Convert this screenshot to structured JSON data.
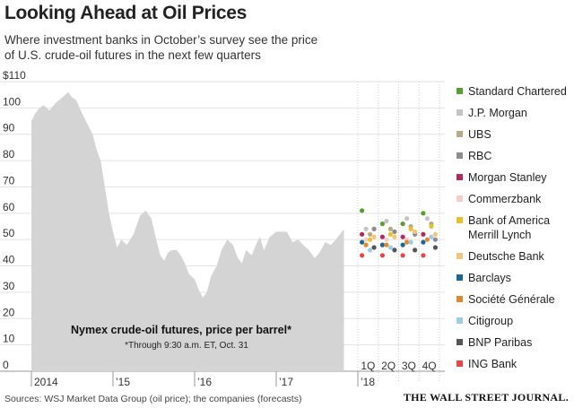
{
  "header": {
    "title": "Looking Ahead at Oil Prices",
    "subtitle": "Where investment banks in October’s survey see the price of U.S. crude-oil futures in the next few quarters"
  },
  "footer": {
    "sources": "Sources: WSJ Market Data Group (oil price); the companies (forecasts)",
    "publisher": "THE WALL STREET JOURNAL."
  },
  "chart_data": {
    "type": "area",
    "title": "Looking Ahead at Oil Prices",
    "ylim": [
      0,
      110
    ],
    "yticks": [
      0,
      10,
      20,
      30,
      40,
      50,
      60,
      70,
      80,
      90,
      100,
      110
    ],
    "ytick_labels": [
      "0",
      "10",
      "20",
      "30",
      "40",
      "50",
      "60",
      "70",
      "80",
      "90",
      "100",
      "$110"
    ],
    "grid": true,
    "year_labels": [
      {
        "label": "2014",
        "t": 2014.0
      },
      {
        "label": "’15",
        "t": 2015.0
      },
      {
        "label": "’16",
        "t": 2016.0
      },
      {
        "label": "’17",
        "t": 2017.0
      },
      {
        "label": "’18",
        "t": 2018.0
      }
    ],
    "quarter_labels": [
      "1Q",
      "2Q",
      "3Q",
      "4Q"
    ],
    "annotation": {
      "label": "Nymex crude-oil futures, price per barrel*",
      "footnote": "*Through 9:30 a.m. ET, Oct. 31"
    },
    "price_series": {
      "name": "Nymex crude-oil futures, price per barrel",
      "points": [
        [
          2014.0,
          95
        ],
        [
          2014.05,
          98
        ],
        [
          2014.1,
          100
        ],
        [
          2014.15,
          101
        ],
        [
          2014.22,
          99
        ],
        [
          2014.3,
          102
        ],
        [
          2014.38,
          104
        ],
        [
          2014.45,
          106
        ],
        [
          2014.5,
          104
        ],
        [
          2014.55,
          103
        ],
        [
          2014.62,
          98
        ],
        [
          2014.7,
          93
        ],
        [
          2014.75,
          90
        ],
        [
          2014.8,
          84
        ],
        [
          2014.85,
          80
        ],
        [
          2014.9,
          70
        ],
        [
          2014.95,
          60
        ],
        [
          2015.0,
          53
        ],
        [
          2015.05,
          47
        ],
        [
          2015.1,
          50
        ],
        [
          2015.17,
          48
        ],
        [
          2015.25,
          52
        ],
        [
          2015.33,
          59
        ],
        [
          2015.4,
          61
        ],
        [
          2015.47,
          58
        ],
        [
          2015.53,
          50
        ],
        [
          2015.58,
          44
        ],
        [
          2015.63,
          42
        ],
        [
          2015.67,
          45
        ],
        [
          2015.72,
          46
        ],
        [
          2015.78,
          46
        ],
        [
          2015.83,
          44
        ],
        [
          2015.88,
          41
        ],
        [
          2015.93,
          37
        ],
        [
          2016.0,
          35
        ],
        [
          2016.05,
          31
        ],
        [
          2016.1,
          28
        ],
        [
          2016.15,
          30
        ],
        [
          2016.2,
          36
        ],
        [
          2016.27,
          40
        ],
        [
          2016.33,
          46
        ],
        [
          2016.4,
          50
        ],
        [
          2016.47,
          48
        ],
        [
          2016.53,
          43
        ],
        [
          2016.58,
          41
        ],
        [
          2016.63,
          46
        ],
        [
          2016.7,
          44
        ],
        [
          2016.75,
          48
        ],
        [
          2016.8,
          51
        ],
        [
          2016.85,
          46
        ],
        [
          2016.92,
          51
        ],
        [
          2017.0,
          53
        ],
        [
          2017.07,
          53
        ],
        [
          2017.13,
          53
        ],
        [
          2017.2,
          49
        ],
        [
          2017.27,
          50
        ],
        [
          2017.33,
          48
        ],
        [
          2017.4,
          46
        ],
        [
          2017.47,
          43
        ],
        [
          2017.53,
          45
        ],
        [
          2017.6,
          49
        ],
        [
          2017.67,
          48
        ],
        [
          2017.73,
          50
        ],
        [
          2017.78,
          52
        ],
        [
          2017.83,
          54
        ]
      ]
    },
    "forecast_series": [
      {
        "name": "Standard Chartered",
        "color": "#5a9e2f",
        "values": [
          61,
          56,
          56,
          60
        ]
      },
      {
        "name": "J.P. Morgan",
        "color": "#c4c4c4",
        "values": [
          54,
          57,
          58,
          58
        ]
      },
      {
        "name": "UBS",
        "color": "#b8a887",
        "values": [
          52,
          54,
          55,
          56
        ]
      },
      {
        "name": "RBC",
        "color": "#8c8c8c",
        "values": [
          54,
          53,
          52,
          50
        ]
      },
      {
        "name": "Morgan Stanley",
        "color": "#b02a62",
        "values": [
          52,
          51,
          51,
          52
        ]
      },
      {
        "name": "Commerzbank",
        "color": "#f7cfc8",
        "values": [
          50,
          50,
          50,
          50
        ]
      },
      {
        "name": "Bank of America Merrill Lynch",
        "color": "#e8c129",
        "values": [
          50,
          52,
          54,
          55
        ]
      },
      {
        "name": "Deutsche Bank",
        "color": "#f2c57c",
        "values": [
          51,
          51,
          53,
          52
        ]
      },
      {
        "name": "Barclays",
        "color": "#1d6796",
        "values": [
          49,
          48,
          48,
          49
        ]
      },
      {
        "name": "Société Générale",
        "color": "#e08a2c",
        "values": [
          48,
          48,
          49,
          50
        ]
      },
      {
        "name": "Citigroup",
        "color": "#9dcde2",
        "values": [
          46,
          47,
          49,
          51
        ]
      },
      {
        "name": "BNP Paribas",
        "color": "#555555",
        "values": [
          47,
          46,
          46,
          47
        ]
      },
      {
        "name": "ING Bank",
        "color": "#e64646",
        "values": [
          44,
          44,
          44,
          44
        ]
      }
    ]
  },
  "legend": {
    "items": [
      {
        "label": "Standard Chartered",
        "color": "#5a9e2f"
      },
      {
        "label": "J.P. Morgan",
        "color": "#c4c4c4"
      },
      {
        "label": "UBS",
        "color": "#b8a887"
      },
      {
        "label": "RBC",
        "color": "#8c8c8c"
      },
      {
        "label": "Morgan Stanley",
        "color": "#b02a62"
      },
      {
        "label": "Commerzbank",
        "color": "#f7cfc8"
      },
      {
        "label": "Bank of America Merrill Lynch",
        "color": "#e8c129"
      },
      {
        "label": "Deutsche Bank",
        "color": "#f2c57c"
      },
      {
        "label": "Barclays",
        "color": "#1d6796"
      },
      {
        "label": "Société Générale",
        "color": "#e08a2c"
      },
      {
        "label": "Citigroup",
        "color": "#9dcde2"
      },
      {
        "label": "BNP Paribas",
        "color": "#555555"
      },
      {
        "label": "ING Bank",
        "color": "#e64646"
      }
    ]
  }
}
